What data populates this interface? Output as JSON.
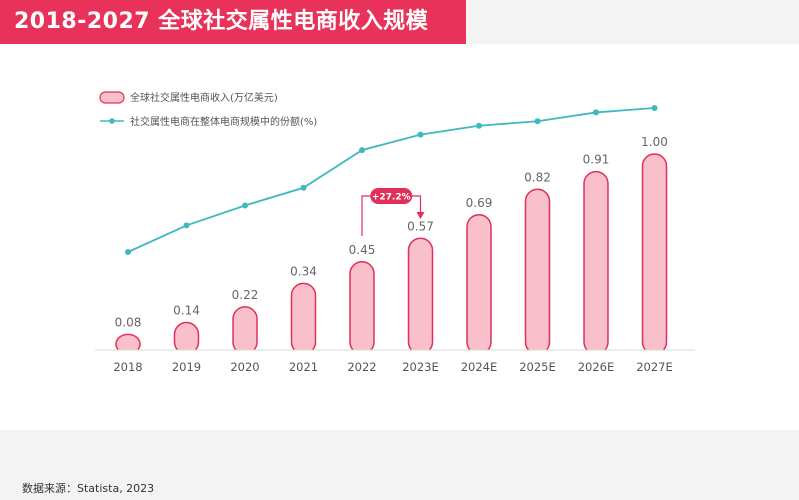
{
  "title": "2018-2027 全球社交属性电商收入规模",
  "source": "数据来源：Statista, 2023",
  "colors": {
    "title_bg": "#e8325a",
    "bar_fill": "#f9c0cc",
    "bar_stroke": "#e0305a",
    "line": "#3fb8bf",
    "callout": "#e0305a"
  },
  "chart_data": {
    "type": "bar",
    "categories": [
      "2018",
      "2019",
      "2020",
      "2021",
      "2022",
      "2023E",
      "2024E",
      "2025E",
      "2026E",
      "2027E"
    ],
    "series": [
      {
        "name": "全球社交属性电商收入(万亿美元)",
        "type": "bar",
        "values": [
          0.08,
          0.14,
          0.22,
          0.34,
          0.45,
          0.57,
          0.69,
          0.82,
          0.91,
          1.0
        ],
        "labels": [
          "0.08",
          "0.14",
          "0.22",
          "0.34",
          "0.45",
          "0.57",
          "0.69",
          "0.82",
          "0.91",
          "1.00"
        ]
      },
      {
        "name": "社交属性电商在整体电商规模中的份额(%)",
        "type": "line",
        "values": [
          0.32,
          0.44,
          0.53,
          0.61,
          0.78,
          0.85,
          0.89,
          0.91,
          0.95,
          0.97
        ]
      }
    ],
    "ylim": [
      0,
      1.0
    ],
    "legend_position": "top-left",
    "annotation": {
      "text": "+27.2%",
      "from": "2022",
      "to": "2023E"
    }
  }
}
